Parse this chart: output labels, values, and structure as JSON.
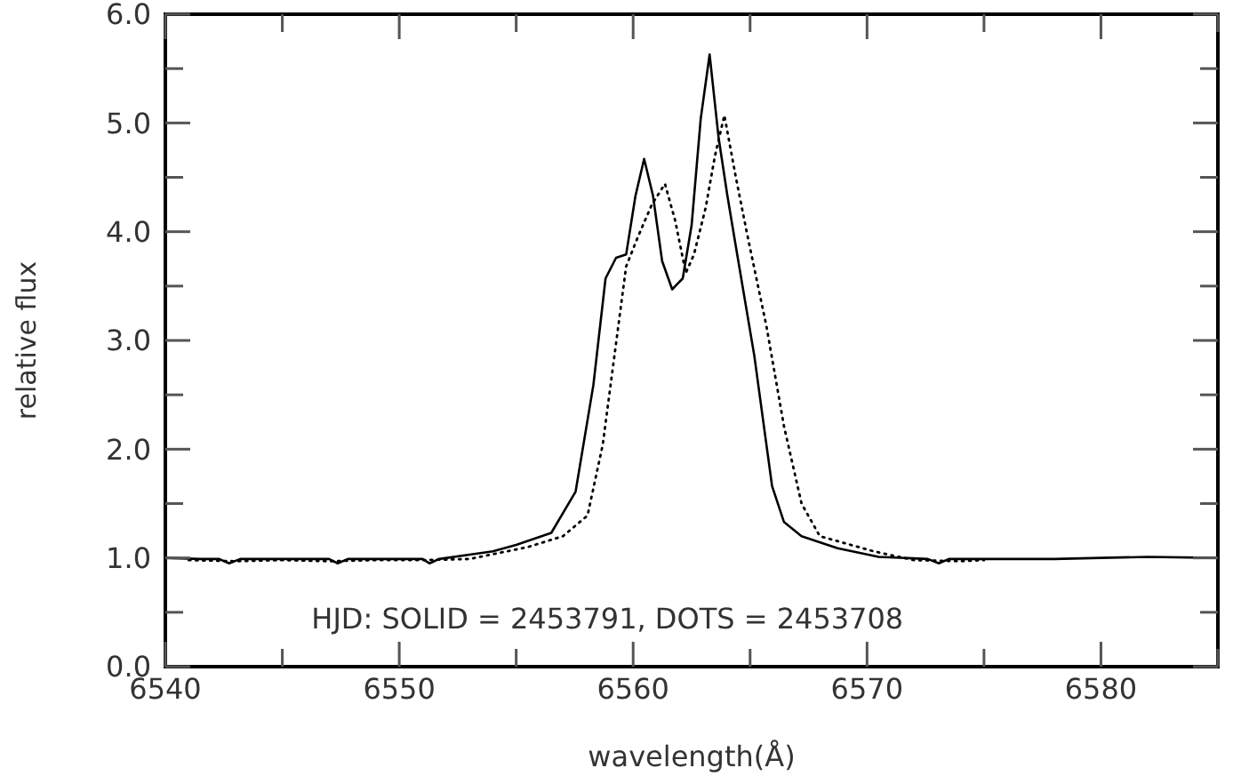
{
  "chart_data": {
    "type": "line",
    "xlabel": "wavelength(Å)",
    "ylabel": "relative flux",
    "annotations": [
      "HJD: SOLID = 2453791, DOTS = 2453708"
    ],
    "xlim": [
      6540,
      6585
    ],
    "xticks": [
      6540,
      {
        "value": 6545,
        "label": null
      },
      6550,
      {
        "value": 6555,
        "label": null
      },
      6560,
      {
        "value": 6565,
        "label": null
      },
      6570,
      {
        "value": 6575,
        "label": null
      },
      6580,
      {
        "value": 6585,
        "label": null
      }
    ],
    "ylim": [
      0,
      6
    ],
    "yticks": [
      {
        "value": 0,
        "label": "0.0"
      },
      {
        "value": 0.5,
        "label": null
      },
      {
        "value": 1,
        "label": "1.0"
      },
      {
        "value": 1.5,
        "label": null
      },
      {
        "value": 2,
        "label": "2.0"
      },
      {
        "value": 2.5,
        "label": null
      },
      {
        "value": 3,
        "label": "3.0"
      },
      {
        "value": 3.5,
        "label": null
      },
      {
        "value": 4,
        "label": "4.0"
      },
      {
        "value": 4.5,
        "label": null
      },
      {
        "value": 5,
        "label": "5.0"
      },
      {
        "value": 5.5,
        "label": null
      },
      {
        "value": 6,
        "label": "6.0"
      }
    ],
    "grid": false,
    "series": [
      {
        "color": "#000000",
        "line_style": "solid",
        "x": [
          6540,
          6541.5,
          6542.3,
          6542.73,
          6543.2,
          6545,
          6547,
          6547.37,
          6547.8,
          6549,
          6551,
          6551.3,
          6551.7,
          6553,
          6554,
          6555,
          6556.5,
          6557.54,
          6558.3,
          6558.82,
          6559.27,
          6559.7,
          6560.1,
          6560.47,
          6560.85,
          6561.24,
          6561.67,
          6562.12,
          6562.5,
          6562.89,
          6563.27,
          6563.65,
          6564.03,
          6564.41,
          6565.18,
          6565.94,
          6566.45,
          6567.2,
          6568.74,
          6570.5,
          6572.6,
          6573.07,
          6573.5,
          6575,
          6578,
          6580,
          6582,
          6585
        ],
        "values": [
          1.0,
          0.99,
          0.99,
          0.95,
          0.99,
          0.99,
          0.99,
          0.95,
          0.99,
          0.99,
          0.99,
          0.95,
          0.99,
          1.03,
          1.06,
          1.12,
          1.23,
          1.61,
          2.59,
          3.57,
          3.76,
          3.79,
          4.33,
          4.67,
          4.33,
          3.73,
          3.47,
          3.57,
          4.06,
          5.04,
          5.63,
          4.87,
          4.33,
          3.84,
          2.86,
          1.66,
          1.33,
          1.2,
          1.09,
          1.01,
          0.99,
          0.95,
          0.99,
          0.99,
          0.99,
          1.0,
          1.01,
          1.0
        ]
      },
      {
        "color": "#000000",
        "line_style": "dotted",
        "x": [
          6541,
          6543,
          6545,
          6547,
          6549,
          6551,
          6553,
          6555.5,
          6557.0,
          6558.05,
          6558.7,
          6559.2,
          6559.7,
          6560.2,
          6560.8,
          6561.36,
          6561.8,
          6562.25,
          6562.6,
          6563.1,
          6563.5,
          6563.9,
          6564.4,
          6564.9,
          6565.7,
          6566.45,
          6567.2,
          6567.98,
          6570.3,
          6572,
          6574,
          6575
        ],
        "values": [
          0.98,
          0.97,
          0.98,
          0.97,
          0.98,
          0.98,
          0.99,
          1.1,
          1.2,
          1.39,
          2.04,
          2.86,
          3.68,
          3.95,
          4.25,
          4.44,
          4.1,
          3.62,
          3.79,
          4.22,
          4.7,
          5.07,
          4.49,
          3.95,
          3.13,
          2.21,
          1.5,
          1.2,
          1.06,
          0.98,
          0.97,
          0.98
        ]
      }
    ]
  }
}
